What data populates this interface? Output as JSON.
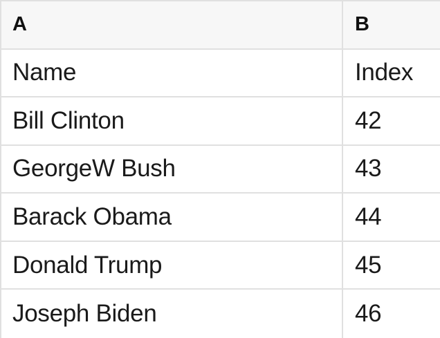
{
  "table": {
    "column_headers": [
      "A",
      "B"
    ],
    "rows": [
      {
        "a": "Name",
        "b": "Index"
      },
      {
        "a": "Bill Clinton",
        "b": "42"
      },
      {
        "a": "GeorgeW Bush",
        "b": "43"
      },
      {
        "a": "Barack Obama",
        "b": "44"
      },
      {
        "a": "Donald Trump",
        "b": "45"
      },
      {
        "a": "Joseph Biden",
        "b": "46"
      }
    ]
  },
  "colors": {
    "header_bg": "#f7f7f7",
    "grid_border": "#e0e0e0",
    "text": "#1a1a1a"
  }
}
